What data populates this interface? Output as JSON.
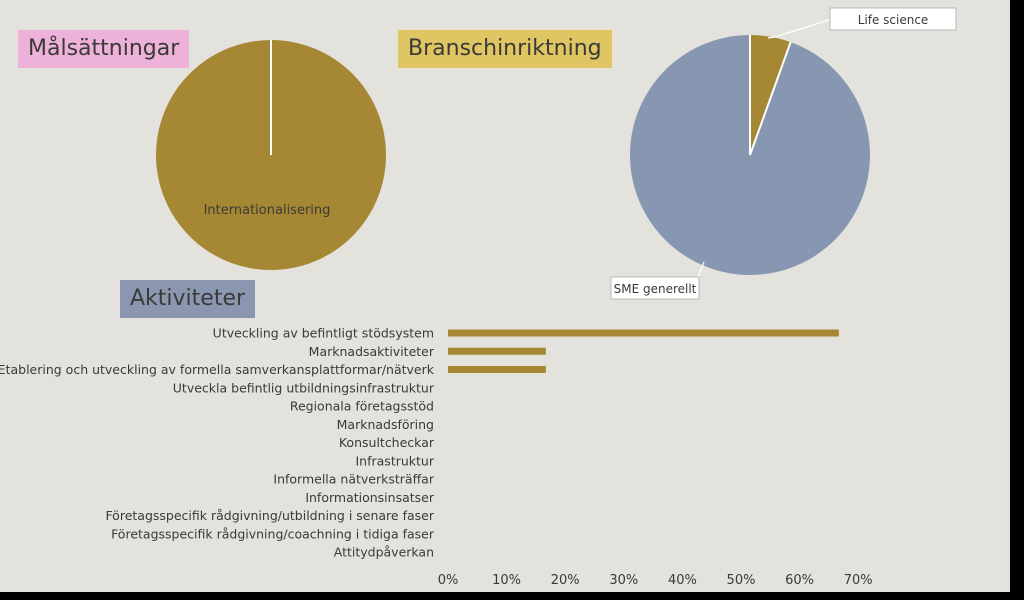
{
  "titles": {
    "goals": "Målsättningar",
    "industry": "Branschinriktning",
    "activities": "Aktiviteter"
  },
  "colors": {
    "slide_bg": "#e3e2dd",
    "goals_title_bg": "#eeb1d9",
    "industry_title_bg": "#dfc662",
    "activities_title_bg": "#8b97b1",
    "gold": "#a68733",
    "slate_blue": "#8797b2",
    "text": "#3a3a38"
  },
  "chart_data": [
    {
      "type": "pie",
      "title": "Målsättningar",
      "slices": [
        {
          "label": "Internationalisering",
          "value": 100,
          "color": "#a68733"
        }
      ]
    },
    {
      "type": "pie",
      "title": "Branschinriktning",
      "slices": [
        {
          "label": "Life science",
          "value": 5.5,
          "color": "#a68733"
        },
        {
          "label": "SME generellt",
          "value": 94.5,
          "color": "#8797b2"
        }
      ]
    },
    {
      "type": "bar",
      "orientation": "horizontal",
      "title": "Aktiviteter",
      "categories": [
        "Utveckling av befintligt stödsystem",
        "Marknadsaktiviteter",
        "Etablering och utveckling av formella samverkansplattformar/nätverk",
        "Utveckla befintlig utbildningsinfrastruktur",
        "Regionala företagsstöd",
        "Marknadsföring",
        "Konsultcheckar",
        "Infrastruktur",
        "Informella nätverksträffar",
        "Informationsinsatser",
        "Företagsspecifik rådgivning/utbildning i senare faser",
        "Företagsspecifik rådgivning/coachning i tidiga faser",
        "Attitydpåverkan"
      ],
      "values": [
        66.7,
        16.7,
        16.7,
        0,
        0,
        0,
        0,
        0,
        0,
        0,
        0,
        0,
        0
      ],
      "xlim": [
        0,
        70
      ],
      "tick_values": [
        0,
        10,
        20,
        30,
        40,
        50,
        60,
        70
      ],
      "tick_labels": [
        "0%",
        "10%",
        "20%",
        "30%",
        "40%",
        "50%",
        "60%",
        "70%"
      ],
      "grid": false,
      "legend": "none",
      "color": "#a68733"
    }
  ]
}
